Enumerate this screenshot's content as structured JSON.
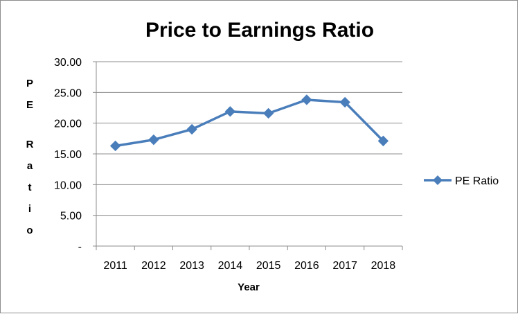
{
  "chart_data": {
    "type": "line",
    "title": "Price to Earnings Ratio",
    "xlabel": "Year",
    "ylabel": "PE Ratio",
    "categories": [
      "2011",
      "2012",
      "2013",
      "2014",
      "2015",
      "2016",
      "2017",
      "2018"
    ],
    "series": [
      {
        "name": "PE Ratio",
        "values": [
          16.3,
          17.3,
          19.0,
          21.9,
          21.6,
          23.8,
          23.4,
          17.1
        ],
        "color": "#4a7ebb",
        "marker": "diamond"
      }
    ],
    "ylim": [
      0,
      30
    ],
    "y_ticks": [
      "-",
      "5.00",
      "10.00",
      "15.00",
      "20.00",
      "25.00",
      "30.00"
    ],
    "grid": "horizontal",
    "legend_position": "right"
  }
}
